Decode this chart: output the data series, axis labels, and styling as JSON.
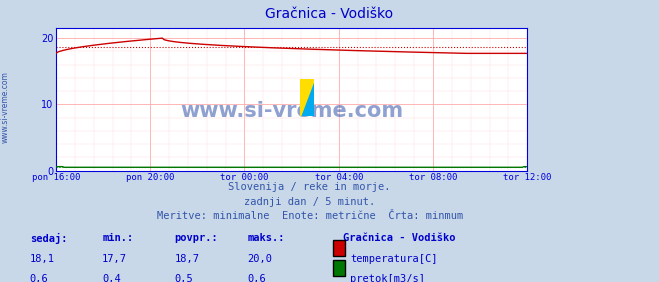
{
  "title": "Gračnica - Vodiško",
  "title_color": "#0000cc",
  "bg_color": "#c8d8e8",
  "plot_bg_color": "#ffffff",
  "x_ticks_labels": [
    "pon 16:00",
    "pon 20:00",
    "tor 00:00",
    "tor 04:00",
    "tor 08:00",
    "tor 12:00"
  ],
  "y_ticks": [
    0,
    10,
    20
  ],
  "ylim": [
    0,
    21.5
  ],
  "xlim": [
    0,
    288
  ],
  "grid_color_major": "#ffaaaa",
  "grid_color_minor": "#ffdddd",
  "temp_color": "#cc0000",
  "flow_color": "#007700",
  "avg_temp": 18.7,
  "avg_flow": 0.5,
  "watermark_text": "www.si-vreme.com",
  "watermark_color": "#3355aa",
  "watermark_fontsize": 15,
  "sidebar_text": "www.si-vreme.com",
  "sidebar_color": "#3355aa",
  "footer_lines": [
    "Slovenija / reke in morje.",
    "zadnji dan / 5 minut.",
    "Meritve: minimalne  Enote: metrične  Črta: minmum"
  ],
  "footer_color": "#3355aa",
  "footer_fontsize": 7.5,
  "table_headers": [
    "sedaj:",
    "min.:",
    "povpr.:",
    "maks.:"
  ],
  "table_temp": [
    "18,1",
    "17,7",
    "18,7",
    "20,0"
  ],
  "table_flow": [
    "0,6",
    "0,4",
    "0,5",
    "0,6"
  ],
  "legend_title": "Gračnica - Vodiško",
  "legend_temp_label": "temperatura[C]",
  "legend_flow_label": "pretok[m3/s]",
  "table_color": "#0000cc",
  "temp_min": 17.7,
  "temp_max": 20.0,
  "flow_min": 0.4,
  "flow_max": 0.6,
  "n_points": 289,
  "axis_color": "#0000dd",
  "tick_color": "#0000dd"
}
